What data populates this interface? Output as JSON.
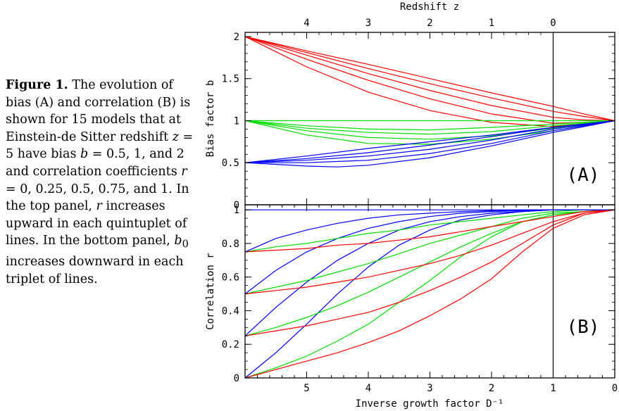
{
  "caption": {
    "label": "Figure 1.",
    "p1": " The evolution of bias (A) and correlation (B) is shown for 15 models that at Einstein-de Sitter redshift ",
    "z": "z",
    "p2": " = 5 have bias ",
    "b": "b",
    "p3": " = 0.5, 1, and 2 and correlation coefficients ",
    "r": "r",
    "p4": " = 0, 0.25, 0.5, 0.75, and 1. In the top panel, ",
    "r2": "r",
    "p5": " increases upward in each quintuplet of lines. In the bottom panel, ",
    "b0": "b",
    "b0sub": "0",
    "p6": " increases downward in each triplet of lines."
  },
  "chart_data": [
    {
      "type": "line",
      "panel_label": "(A)",
      "ylabel": "Bias factor b",
      "top_xlabel": "Redshift z",
      "top_ticks": [
        "4",
        "3",
        "2",
        "1",
        "0"
      ],
      "top_tick_positions_D": [
        5,
        4,
        3,
        2,
        1
      ],
      "xlim": [
        6,
        0
      ],
      "ylim": [
        0,
        2.05
      ],
      "yticks": [
        "0",
        "0.5",
        "1",
        "1.5",
        "2"
      ],
      "vertical_line_x": 1,
      "colors": {
        "b2": "#ff0000",
        "b1": "#00dd00",
        "b05": "#0000ff"
      },
      "groups": [
        {
          "b0": 2,
          "color": "b2",
          "r_values": [
            0,
            0.25,
            0.5,
            0.75,
            1
          ],
          "series": [
            {
              "x": [
                6,
                5,
                4,
                3,
                2,
                1,
                0.5,
                0
              ],
              "y": [
                2.0,
                1.64,
                1.34,
                1.12,
                0.98,
                0.93,
                0.96,
                1.0
              ]
            },
            {
              "x": [
                6,
                5,
                4,
                3,
                2,
                1,
                0.5,
                0
              ],
              "y": [
                2.0,
                1.73,
                1.48,
                1.26,
                1.08,
                0.97,
                0.98,
                1.0
              ]
            },
            {
              "x": [
                6,
                5,
                4,
                3,
                2,
                1,
                0.5,
                0
              ],
              "y": [
                2.0,
                1.78,
                1.56,
                1.36,
                1.18,
                1.04,
                1.01,
                1.0
              ]
            },
            {
              "x": [
                6,
                5,
                4,
                3,
                2,
                1,
                0.5,
                0
              ],
              "y": [
                2.0,
                1.81,
                1.62,
                1.44,
                1.27,
                1.11,
                1.05,
                1.0
              ]
            },
            {
              "x": [
                6,
                5,
                4,
                3,
                2,
                1,
                0.5,
                0
              ],
              "y": [
                2.0,
                1.83,
                1.67,
                1.5,
                1.33,
                1.17,
                1.08,
                1.0
              ]
            }
          ]
        },
        {
          "b0": 1,
          "color": "b1",
          "r_values": [
            0,
            0.25,
            0.5,
            0.75,
            1
          ],
          "series": [
            {
              "x": [
                6,
                5,
                4,
                3,
                2,
                1,
                0.5,
                0
              ],
              "y": [
                1.0,
                0.83,
                0.73,
                0.72,
                0.78,
                0.88,
                0.94,
                1.0
              ]
            },
            {
              "x": [
                6,
                5,
                4,
                3,
                2,
                1,
                0.5,
                0
              ],
              "y": [
                1.0,
                0.88,
                0.8,
                0.78,
                0.82,
                0.91,
                0.95,
                1.0
              ]
            },
            {
              "x": [
                6,
                5,
                4,
                3,
                2,
                1,
                0.5,
                0
              ],
              "y": [
                1.0,
                0.91,
                0.86,
                0.84,
                0.87,
                0.94,
                0.97,
                1.0
              ]
            },
            {
              "x": [
                6,
                5,
                4,
                3,
                2,
                1,
                0.5,
                0
              ],
              "y": [
                1.0,
                0.94,
                0.9,
                0.89,
                0.92,
                0.96,
                0.98,
                1.0
              ]
            },
            {
              "x": [
                6,
                5,
                4,
                3,
                2,
                1,
                0.5,
                0
              ],
              "y": [
                1.0,
                1.0,
                1.0,
                1.0,
                1.0,
                1.0,
                1.0,
                1.0
              ]
            }
          ]
        },
        {
          "b0": 0.5,
          "color": "b05",
          "r_values": [
            0,
            0.25,
            0.5,
            0.75,
            1
          ],
          "series": [
            {
              "x": [
                6,
                5,
                4.5,
                4,
                3,
                2,
                1,
                0.5,
                0
              ],
              "y": [
                0.5,
                0.46,
                0.45,
                0.47,
                0.56,
                0.7,
                0.86,
                0.93,
                1.0
              ]
            },
            {
              "x": [
                6,
                5,
                4,
                3,
                2,
                1,
                0.5,
                0
              ],
              "y": [
                0.5,
                0.5,
                0.53,
                0.61,
                0.73,
                0.88,
                0.94,
                1.0
              ]
            },
            {
              "x": [
                6,
                5,
                4,
                3,
                2,
                1,
                0.5,
                0
              ],
              "y": [
                0.5,
                0.53,
                0.58,
                0.66,
                0.77,
                0.9,
                0.95,
                1.0
              ]
            },
            {
              "x": [
                6,
                5,
                4,
                3,
                2,
                1,
                0.5,
                0
              ],
              "y": [
                0.5,
                0.55,
                0.62,
                0.71,
                0.81,
                0.92,
                0.96,
                1.0
              ]
            },
            {
              "x": [
                6,
                5,
                4,
                3,
                2,
                1,
                0.5,
                0
              ],
              "y": [
                0.5,
                0.58,
                0.67,
                0.75,
                0.83,
                0.92,
                0.96,
                1.0
              ]
            }
          ]
        }
      ]
    },
    {
      "type": "line",
      "panel_label": "(B)",
      "ylabel": "Correlation r",
      "xlabel": "Inverse growth factor D⁻¹",
      "xticks": [
        "5",
        "4",
        "3",
        "2",
        "1",
        "0"
      ],
      "xlim": [
        6,
        0
      ],
      "ylim": [
        0,
        1.03
      ],
      "yticks": [
        "0",
        "0.2",
        "0.4",
        "0.6",
        "0.8",
        "1"
      ],
      "vertical_line_x": 1,
      "groups": [
        {
          "r0": 0,
          "series": [
            {
              "color": "b05",
              "x": [
                6,
                5.5,
                5,
                4.5,
                4,
                3.5,
                3,
                2.5,
                2,
                1.5,
                1,
                0.5,
                0
              ],
              "y": [
                0.0,
                0.15,
                0.32,
                0.5,
                0.66,
                0.79,
                0.88,
                0.94,
                0.97,
                0.99,
                1.0,
                1.0,
                1.0
              ]
            },
            {
              "color": "b1",
              "x": [
                6,
                5.5,
                5,
                4.5,
                4,
                3.5,
                3,
                2.5,
                2,
                1.5,
                1,
                0.5,
                0
              ],
              "y": [
                0.0,
                0.06,
                0.13,
                0.22,
                0.32,
                0.45,
                0.58,
                0.72,
                0.84,
                0.93,
                0.97,
                0.99,
                1.0
              ]
            },
            {
              "color": "b2",
              "x": [
                6,
                5.5,
                5,
                4.5,
                4,
                3.5,
                3,
                2.5,
                2,
                1.5,
                1,
                0.5,
                0
              ],
              "y": [
                0.0,
                0.05,
                0.1,
                0.15,
                0.21,
                0.28,
                0.37,
                0.47,
                0.59,
                0.75,
                0.89,
                0.97,
                1.0
              ]
            }
          ]
        },
        {
          "r0": 0.25,
          "series": [
            {
              "color": "b05",
              "x": [
                6,
                5.5,
                5,
                4.5,
                4,
                3.5,
                3,
                2.5,
                2,
                1.5,
                1,
                0.5,
                0
              ],
              "y": [
                0.25,
                0.42,
                0.57,
                0.7,
                0.8,
                0.88,
                0.93,
                0.96,
                0.98,
                0.99,
                1.0,
                1.0,
                1.0
              ]
            },
            {
              "color": "b1",
              "x": [
                6,
                5.5,
                5,
                4.5,
                4,
                3.5,
                3,
                2.5,
                2,
                1.5,
                1,
                0.5,
                0
              ],
              "y": [
                0.25,
                0.3,
                0.36,
                0.43,
                0.51,
                0.6,
                0.69,
                0.78,
                0.86,
                0.93,
                0.97,
                0.99,
                1.0
              ]
            },
            {
              "color": "b2",
              "x": [
                6,
                5.5,
                5,
                4.5,
                4,
                3.5,
                3,
                2.5,
                2,
                1.5,
                1,
                0.5,
                0
              ],
              "y": [
                0.25,
                0.28,
                0.31,
                0.35,
                0.39,
                0.45,
                0.52,
                0.6,
                0.69,
                0.8,
                0.91,
                0.98,
                1.0
              ]
            }
          ]
        },
        {
          "r0": 0.5,
          "series": [
            {
              "color": "b05",
              "x": [
                6,
                5.5,
                5,
                4.5,
                4,
                3.5,
                3,
                2.5,
                2,
                1.5,
                1,
                0.5,
                0
              ],
              "y": [
                0.5,
                0.64,
                0.75,
                0.83,
                0.89,
                0.93,
                0.96,
                0.98,
                0.99,
                0.995,
                1.0,
                1.0,
                1.0
              ]
            },
            {
              "color": "b1",
              "x": [
                6,
                5.5,
                5,
                4.5,
                4,
                3.5,
                3,
                2.5,
                2,
                1.5,
                1,
                0.5,
                0
              ],
              "y": [
                0.5,
                0.54,
                0.58,
                0.63,
                0.68,
                0.74,
                0.8,
                0.85,
                0.9,
                0.95,
                0.98,
                0.99,
                1.0
              ]
            },
            {
              "color": "b2",
              "x": [
                6,
                5.5,
                5,
                4.5,
                4,
                3.5,
                3,
                2.5,
                2,
                1.5,
                1,
                0.5,
                0
              ],
              "y": [
                0.5,
                0.52,
                0.54,
                0.57,
                0.6,
                0.64,
                0.68,
                0.73,
                0.79,
                0.86,
                0.93,
                0.98,
                1.0
              ]
            }
          ]
        },
        {
          "r0": 0.75,
          "series": [
            {
              "color": "b05",
              "x": [
                6,
                5.5,
                5,
                4.5,
                4,
                3.5,
                3,
                2.5,
                2,
                1.5,
                1,
                0.5,
                0
              ],
              "y": [
                0.75,
                0.83,
                0.88,
                0.92,
                0.95,
                0.97,
                0.98,
                0.99,
                0.995,
                1.0,
                1.0,
                1.0,
                1.0
              ]
            },
            {
              "color": "b1",
              "x": [
                6,
                5.5,
                5,
                4.5,
                4,
                3.5,
                3,
                2.5,
                2,
                1.5,
                1,
                0.5,
                0
              ],
              "y": [
                0.75,
                0.78,
                0.8,
                0.83,
                0.86,
                0.88,
                0.91,
                0.93,
                0.95,
                0.97,
                0.99,
                1.0,
                1.0
              ]
            },
            {
              "color": "b2",
              "x": [
                6,
                5.5,
                5,
                4.5,
                4,
                3.5,
                3,
                2.5,
                2,
                1.5,
                1,
                0.5,
                0
              ],
              "y": [
                0.75,
                0.76,
                0.77,
                0.79,
                0.8,
                0.82,
                0.84,
                0.87,
                0.9,
                0.93,
                0.96,
                0.99,
                1.0
              ]
            }
          ]
        },
        {
          "r0": 1,
          "series": [
            {
              "color": "b05",
              "x": [
                6,
                0
              ],
              "y": [
                1.0,
                1.0
              ]
            }
          ]
        }
      ]
    }
  ]
}
